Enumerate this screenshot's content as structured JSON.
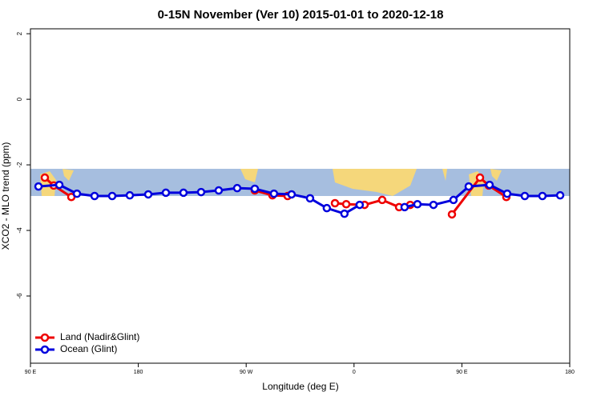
{
  "chart_data": {
    "type": "line",
    "title": "0-15N November (Ver 10)   2015-01-01 to 2020-12-18",
    "x_label": "Longitude (deg E)",
    "y_label": "XCO2 - MLO trend (ppm)",
    "xlim": [
      90,
      540
    ],
    "ylim": [
      -8.05,
      2.15
    ],
    "xticks": [
      {
        "value": 90,
        "label": "90 E"
      },
      180,
      {
        "value": 270,
        "label": "90 W"
      },
      {
        "value": 360,
        "label": "0"
      },
      {
        "value": 450,
        "label": "90 E"
      },
      {
        "value": 540,
        "label": "180"
      }
    ],
    "yticks": [
      2,
      0,
      -2,
      -4,
      -6
    ],
    "legend": "bottom-left",
    "series": [
      {
        "name": "Land (Nadir&Glint)",
        "color": "#ee0000",
        "x": [
          102,
          109.4,
          124.1,
          277.2,
          291.9,
          304.6,
          344.1,
          353.5,
          368.8,
          383.5,
          397.6,
          406.9,
          441.7,
          465.1,
          472.4,
          487.1
        ],
        "values": [
          -2.39,
          -2.63,
          -2.98,
          -2.78,
          -2.93,
          -2.95,
          -3.17,
          -3.2,
          -3.22,
          -3.07,
          -3.29,
          -3.22,
          -3.51,
          -2.39,
          -2.63,
          -2.98
        ]
      },
      {
        "name": "Ocean (Glint)",
        "color": "#0000dd",
        "x": [
          96.7,
          114.1,
          128.8,
          143.5,
          158.2,
          172.9,
          188.3,
          203,
          217.7,
          232.4,
          247.1,
          262.5,
          277.2,
          293.2,
          307.9,
          323.3,
          337.3,
          352,
          364.7,
          402.2,
          412.9,
          426.3,
          443,
          455.7,
          473.1,
          487.8,
          502.5,
          517.2,
          532
        ],
        "values": [
          -2.66,
          -2.61,
          -2.88,
          -2.95,
          -2.95,
          -2.93,
          -2.9,
          -2.85,
          -2.85,
          -2.83,
          -2.78,
          -2.71,
          -2.73,
          -2.88,
          -2.9,
          -3.02,
          -3.32,
          -3.49,
          -3.22,
          -3.29,
          -3.2,
          -3.22,
          -3.07,
          -2.66,
          -2.61,
          -2.88,
          -2.95,
          -2.95,
          -2.93
        ]
      }
    ]
  }
}
